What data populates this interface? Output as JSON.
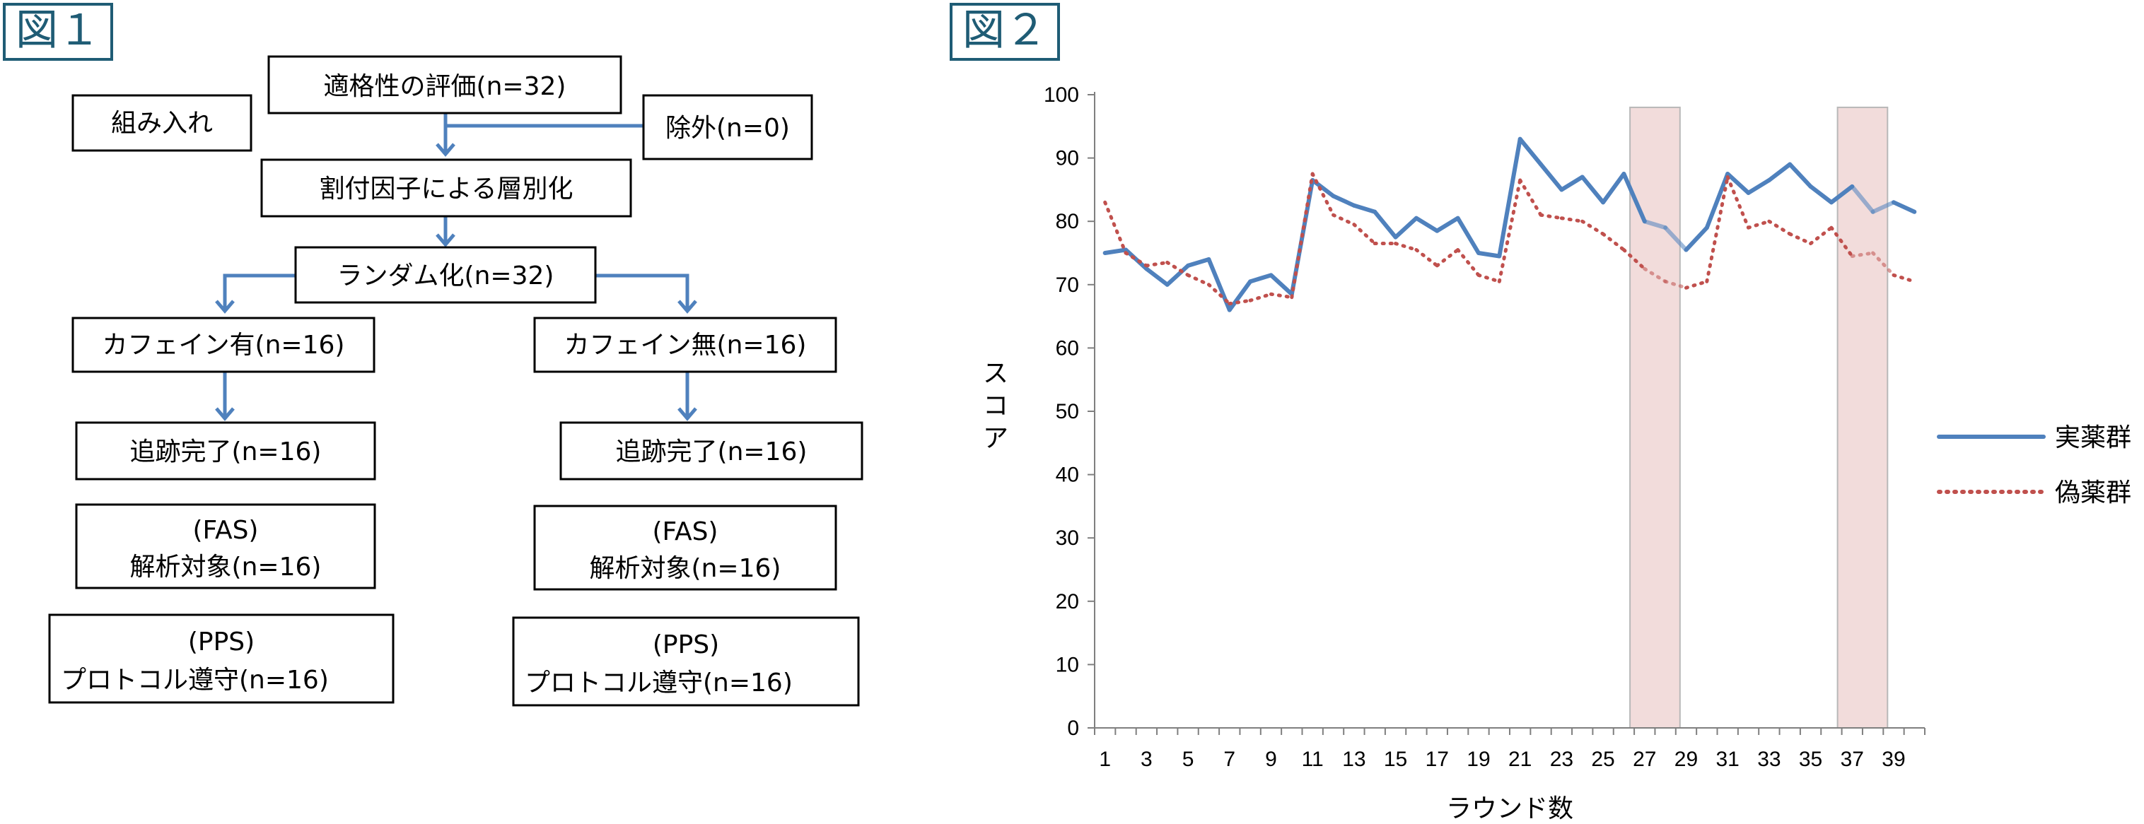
{
  "figure1": {
    "label": "図１",
    "boxes": {
      "eligibility": "適格性の評価(n=32)",
      "enrollment": "組み入れ",
      "excluded": "除外(n=0)",
      "stratification": "割付因子による層別化",
      "randomization": "ランダム化(n=32)",
      "caffeine_yes": "カフェイン有(n=16)",
      "caffeine_no": "カフェイン無(n=16)",
      "followup_left": "追跡完了(n=16)",
      "followup_right": "追跡完了(n=16)",
      "fas_left_line1": "(FAS)",
      "fas_left_line2": "解析対象(n=16)",
      "fas_right_line1": "(FAS)",
      "fas_right_line2": "解析対象(n=16)",
      "pps_left_line1": "(PPS)",
      "pps_left_line2": "プロトコル遵守(n=16)",
      "pps_right_line1": "(PPS)",
      "pps_right_line2": "プロトコル遵守(n=16)"
    },
    "colors": {
      "arrow": "#4f81bd",
      "box_border": "#000000"
    }
  },
  "figure2": {
    "label": "図２",
    "chart_data": {
      "type": "line",
      "xlabel": "ラウンド数",
      "ylabel": "スコア",
      "x": [
        1,
        2,
        3,
        4,
        5,
        6,
        7,
        8,
        9,
        10,
        11,
        12,
        13,
        14,
        15,
        16,
        17,
        18,
        19,
        20,
        21,
        22,
        23,
        24,
        25,
        26,
        27,
        28,
        29,
        30,
        31,
        32,
        33,
        34,
        35,
        36,
        37,
        38,
        39,
        40
      ],
      "x_tick_labels": [
        "1",
        "3",
        "5",
        "7",
        "9",
        "11",
        "13",
        "15",
        "17",
        "19",
        "21",
        "23",
        "25",
        "27",
        "29",
        "31",
        "33",
        "35",
        "37",
        "39"
      ],
      "ylim": [
        0,
        100
      ],
      "y_ticks": [
        "0",
        "10",
        "20",
        "30",
        "40",
        "50",
        "60",
        "70",
        "80",
        "90",
        "100"
      ],
      "series": [
        {
          "name": "実薬群",
          "style": "solid",
          "color": "#4f81bd",
          "values": [
            75,
            75.5,
            72.5,
            70,
            73,
            74,
            66,
            70.5,
            71.5,
            68.5,
            86.5,
            84,
            82.5,
            81.5,
            77.5,
            80.5,
            78.5,
            80.5,
            75,
            74.5,
            93,
            89,
            85,
            87,
            83,
            87.5,
            80,
            79,
            75.5,
            79,
            87.5,
            84.5,
            86.5,
            89,
            85.5,
            83,
            85.5,
            81.5,
            83,
            81.5
          ]
        },
        {
          "name": "偽薬群",
          "style": "dotted",
          "color": "#c0504d",
          "values": [
            83,
            75,
            73,
            73.5,
            71.5,
            70,
            67,
            67.5,
            68.5,
            68,
            87.5,
            81,
            79.5,
            76.5,
            76.5,
            75.5,
            73,
            75.5,
            71.5,
            70.5,
            86.5,
            81,
            80.5,
            80,
            78,
            75.5,
            72.5,
            70.5,
            69.5,
            70.5,
            87,
            79,
            80,
            78,
            76.5,
            79,
            74.5,
            75,
            71.5,
            70.5
          ]
        }
      ],
      "shaded_ranges": [
        [
          27,
          29
        ],
        [
          37,
          39
        ]
      ],
      "shade_color": "#f2dcdb",
      "grid": false,
      "legend_position": "right"
    }
  }
}
